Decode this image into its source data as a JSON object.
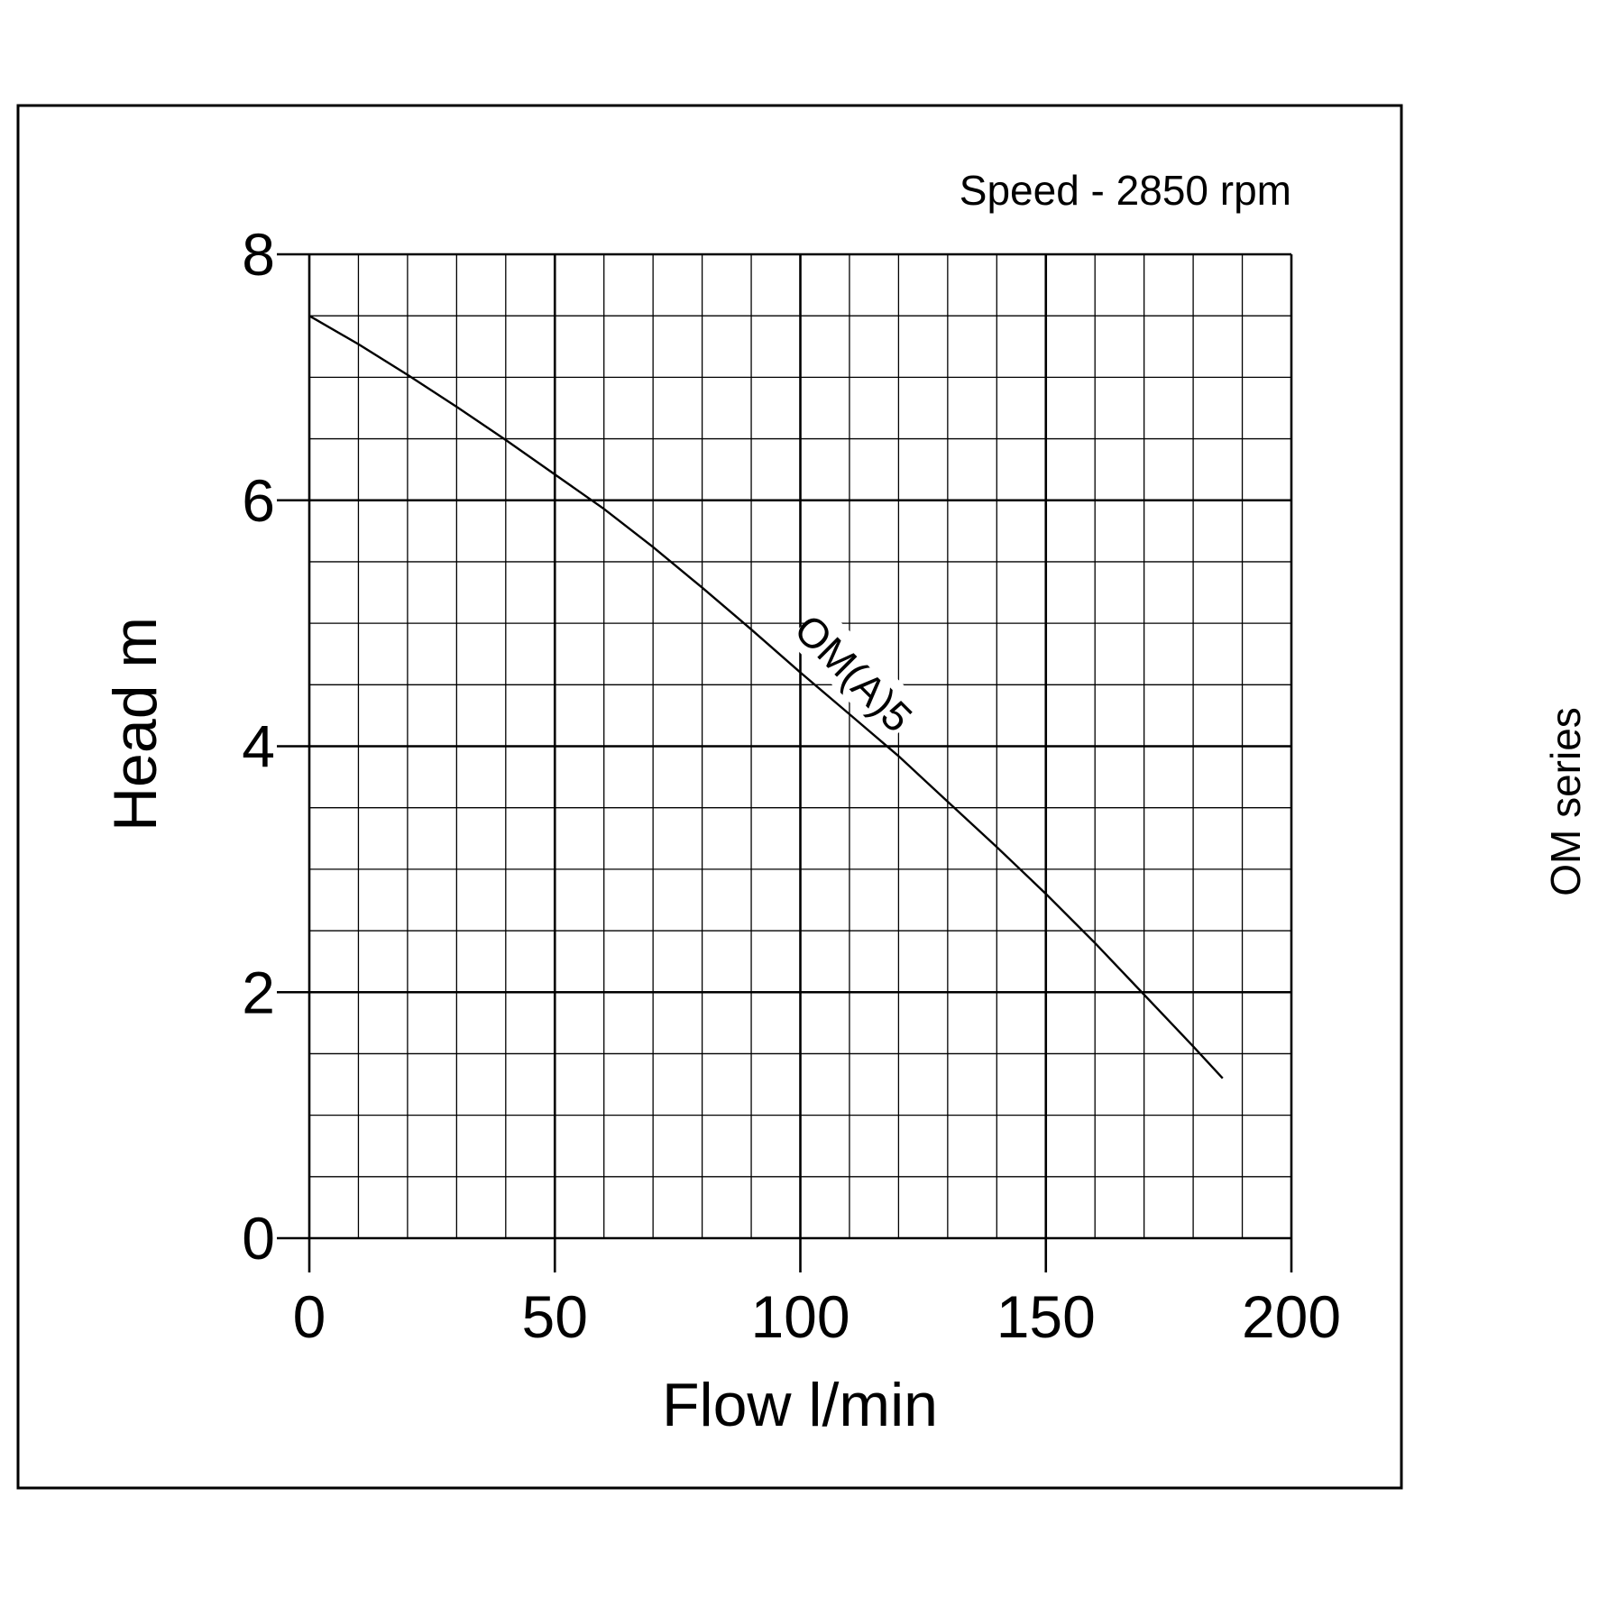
{
  "side_label": "OM series",
  "chart_data": {
    "type": "line",
    "title": "",
    "annotation": "Speed - 2850 rpm",
    "xlabel": "Flow l/min",
    "ylabel": "Head m",
    "xlim": [
      0,
      200
    ],
    "ylim": [
      0,
      8
    ],
    "x_ticks": [
      "0",
      "50",
      "100",
      "150",
      "200"
    ],
    "y_ticks": [
      "0",
      "2",
      "4",
      "6",
      "8"
    ],
    "x_tick_values": [
      0,
      50,
      100,
      150,
      200
    ],
    "y_tick_values": [
      0,
      2,
      4,
      6,
      8
    ],
    "x_minor_step": 10,
    "y_minor_step": 0.5,
    "grid": true,
    "legend": "none",
    "series": [
      {
        "name": "OM(A)5",
        "x": [
          0,
          10,
          20,
          30,
          40,
          50,
          60,
          70,
          80,
          90,
          100,
          110,
          120,
          130,
          140,
          150,
          160,
          170,
          180,
          186
        ],
        "y": [
          7.5,
          7.27,
          7.02,
          6.76,
          6.49,
          6.21,
          5.93,
          5.62,
          5.29,
          4.95,
          4.6,
          4.26,
          3.92,
          3.55,
          3.18,
          2.8,
          2.4,
          1.98,
          1.56,
          1.3
        ]
      }
    ]
  }
}
